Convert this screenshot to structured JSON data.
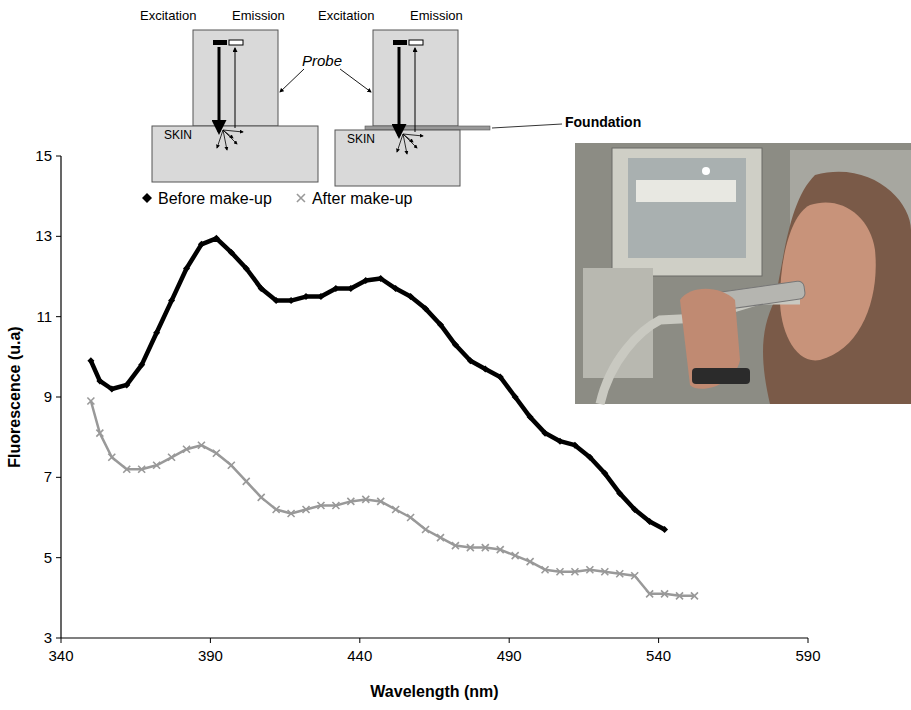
{
  "chart_data": {
    "type": "line",
    "x_label": "Wavelength (nm)",
    "y_label": "Fluorescence (u.a)",
    "x": [
      350,
      353,
      357,
      362,
      367,
      372,
      377,
      382,
      387,
      392,
      397,
      402,
      407,
      412,
      417,
      422,
      427,
      432,
      437,
      442,
      447,
      452,
      457,
      462,
      467,
      472,
      477,
      482,
      487,
      492,
      497,
      502,
      507,
      512,
      517,
      522,
      527,
      532,
      537,
      542,
      547,
      552
    ],
    "series": [
      {
        "name": "Before make-up",
        "color": "#000000",
        "marker": "diamond",
        "values": [
          9.9,
          9.4,
          9.2,
          9.3,
          9.8,
          10.6,
          11.4,
          12.2,
          12.8,
          12.95,
          12.6,
          12.2,
          11.7,
          11.4,
          11.4,
          11.5,
          11.5,
          11.7,
          11.7,
          11.9,
          11.95,
          11.7,
          11.5,
          11.2,
          10.8,
          10.3,
          9.9,
          9.7,
          9.5,
          9.0,
          8.5,
          8.1,
          7.9,
          7.8,
          7.5,
          7.1,
          6.6,
          6.2,
          5.9,
          5.7,
          null,
          null
        ]
      },
      {
        "name": "After make-up",
        "color": "#999999",
        "marker": "x",
        "values": [
          8.9,
          8.1,
          7.5,
          7.2,
          7.2,
          7.3,
          7.5,
          7.7,
          7.8,
          7.6,
          7.3,
          6.9,
          6.5,
          6.2,
          6.1,
          6.2,
          6.3,
          6.3,
          6.4,
          6.45,
          6.4,
          6.2,
          6.0,
          5.7,
          5.5,
          5.3,
          5.25,
          5.25,
          5.2,
          5.05,
          4.9,
          4.7,
          4.65,
          4.65,
          4.7,
          4.65,
          4.6,
          4.55,
          4.1,
          4.1,
          4.05,
          4.05
        ]
      }
    ],
    "xlim": [
      340,
      590
    ],
    "xticks": [
      340,
      390,
      440,
      490,
      540,
      590
    ],
    "ylim": [
      3,
      15
    ],
    "yticks": [
      3,
      5,
      7,
      9,
      11,
      13,
      15
    ],
    "grid": false,
    "legend": "top"
  },
  "diagram": {
    "probe": "Probe",
    "columns": [
      {
        "excitation": "Excitation",
        "emission": "Emission",
        "skin": "SKIN"
      },
      {
        "excitation": "Excitation",
        "emission": "Emission",
        "skin": "SKIN",
        "layer": "Foundation"
      }
    ]
  }
}
